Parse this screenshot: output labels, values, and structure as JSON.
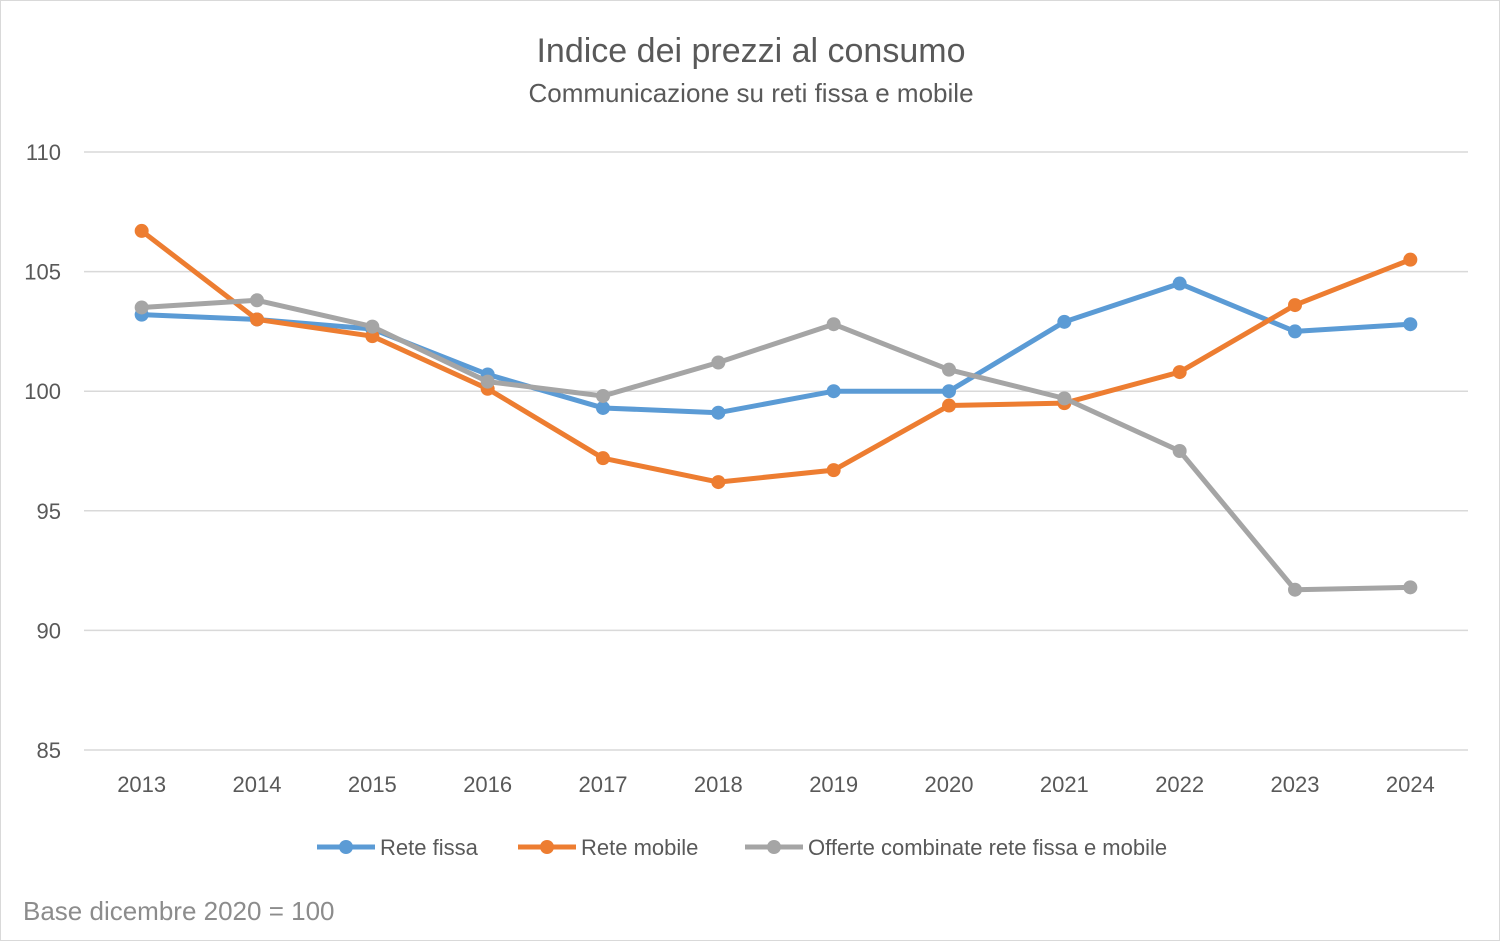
{
  "chart_data": {
    "type": "line",
    "title": "Indice dei prezzi al consumo",
    "subtitle": "Communicazione su reti fissa e mobile",
    "categories": [
      "2013",
      "2014",
      "2015",
      "2016",
      "2017",
      "2018",
      "2019",
      "2020",
      "2021",
      "2022",
      "2023",
      "2024"
    ],
    "ylim": [
      85,
      110
    ],
    "yticks": [
      "85",
      "90",
      "95",
      "100",
      "105",
      "110"
    ],
    "grid": true,
    "legend_position": "bottom",
    "series": [
      {
        "name": "Rete fissa",
        "color": "#5b9bd5",
        "values": [
          103.2,
          103.0,
          102.6,
          100.7,
          99.3,
          99.1,
          100.0,
          100.0,
          102.9,
          104.5,
          102.5,
          102.8
        ]
      },
      {
        "name": "Rete mobile",
        "color": "#ed7d31",
        "values": [
          106.7,
          103.0,
          102.3,
          100.1,
          97.2,
          96.2,
          96.7,
          99.4,
          99.5,
          100.8,
          103.6,
          105.5
        ]
      },
      {
        "name": "Offerte combinate rete fissa e mobile",
        "color": "#a5a5a5",
        "values": [
          103.5,
          103.8,
          102.7,
          100.4,
          99.8,
          101.2,
          102.8,
          100.9,
          99.7,
          97.5,
          91.7,
          91.8
        ]
      }
    ],
    "footnote": "Base dicembre 2020 = 100"
  }
}
